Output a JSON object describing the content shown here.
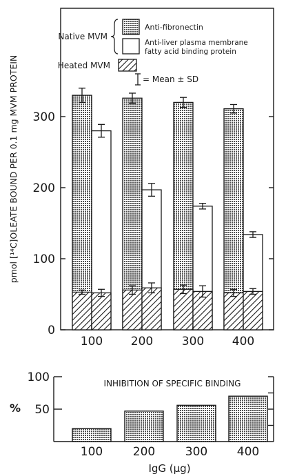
{
  "chart_data": [
    {
      "type": "bar",
      "categories": [
        "100",
        "200",
        "300",
        "400"
      ],
      "ylabel": "pmol [¹⁴C]OLEATE BOUND PER 0.1 mg MVM PROTEIN",
      "xlabel": "",
      "ylim": [
        0,
        400
      ],
      "yticks": [
        0,
        100,
        200,
        300
      ],
      "grid": false,
      "legend_position": "top",
      "legend_group_label": "Native MVM",
      "legend_heated_label": "Heated MVM",
      "errorbar_label": "= Mean ± SD",
      "series": [
        {
          "name": "Anti-fibronectin",
          "pattern": "dotted",
          "values": [
            330,
            326,
            320,
            311
          ],
          "errors": [
            10,
            7,
            7,
            6
          ],
          "heated_values": [
            53,
            56,
            57,
            52
          ],
          "heated_errors": [
            3,
            6,
            6,
            5
          ]
        },
        {
          "name": "Anti-liver plasma membrane fatty acid binding protein",
          "name_line1": "Anti-liver plasma membrane",
          "name_line2": "fatty acid binding protein",
          "pattern": "open",
          "values": [
            280,
            197,
            174,
            134
          ],
          "errors": [
            9,
            9,
            4,
            4
          ],
          "heated_values": [
            52,
            59,
            54,
            54
          ],
          "heated_errors": [
            5,
            7,
            8,
            4
          ]
        }
      ]
    },
    {
      "type": "bar",
      "title": "INHIBITION OF SPECIFIC BINDING",
      "categories": [
        "100",
        "200",
        "300",
        "400"
      ],
      "values": [
        20,
        47,
        56,
        70
      ],
      "ylabel": "%",
      "xlabel": "IgG (μg)",
      "ylim": [
        0,
        100
      ],
      "yticks": [
        50,
        100
      ],
      "pattern": "dotted",
      "grid": false
    }
  ],
  "colors": {
    "ink": "#1a1a1a",
    "background": "#ffffff",
    "dot_fill": "#8c8c8c"
  }
}
